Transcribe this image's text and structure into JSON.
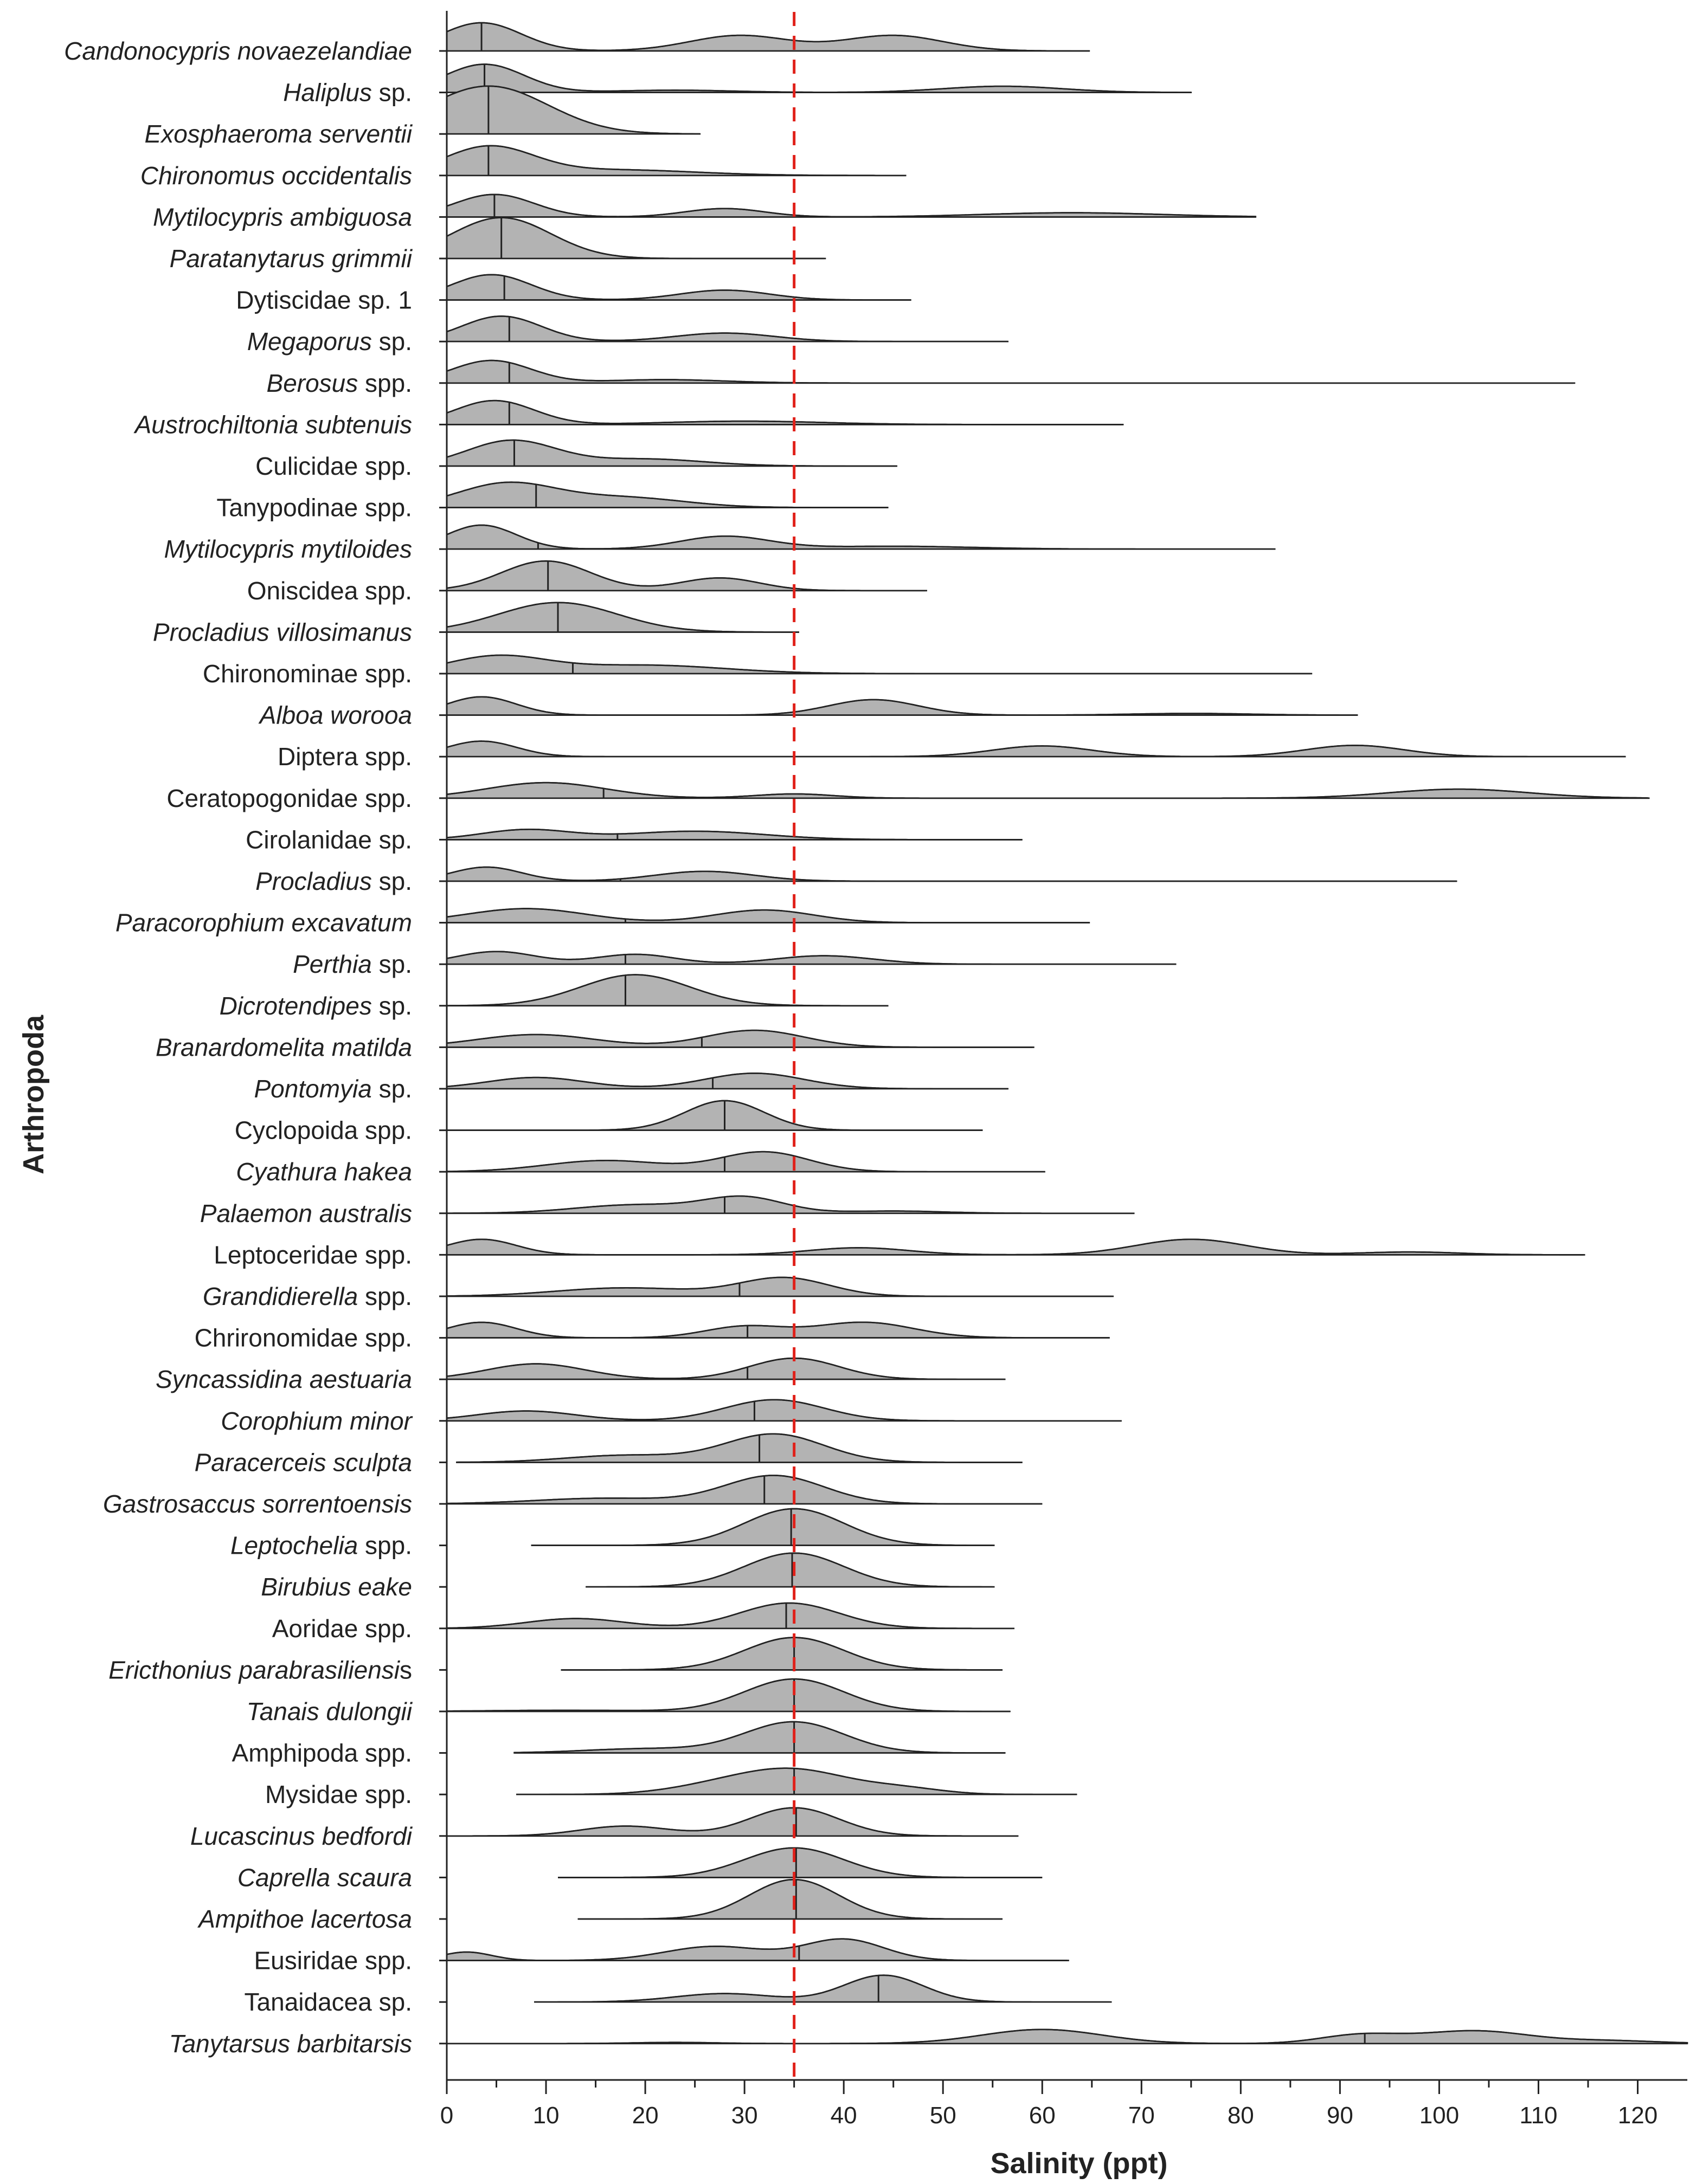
{
  "chart_data": {
    "type": "ridgeline",
    "ylabel": "Arthropoda",
    "xlabel": "Salinity (ppt)",
    "xlim": [
      0,
      125
    ],
    "xticks": [
      0,
      10,
      20,
      30,
      40,
      50,
      60,
      70,
      80,
      90,
      100,
      110,
      120
    ],
    "xtick_labels": [
      "0",
      "10",
      "20",
      "30",
      "40",
      "50",
      "60",
      "70",
      "80",
      "90",
      "100",
      "110",
      "120"
    ],
    "reference_line": {
      "x": 35,
      "color": "#e0211a",
      "style": "dashed"
    },
    "fill_color": "#b3b3b3",
    "species": [
      {
        "name": "Candonocypris novaezelandiae",
        "italic": [
          0,
          28
        ],
        "median": 3.5,
        "min": 0,
        "max": 64.8,
        "peaks": [
          [
            3.5,
            1.0,
            4
          ],
          [
            29.5,
            0.55,
            5
          ],
          [
            45,
            0.55,
            5
          ]
        ]
      },
      {
        "name": "Haliplus sp.",
        "italic": [
          0,
          8
        ],
        "median": 3.8,
        "min": 0,
        "max": 75,
        "peaks": [
          [
            3.8,
            1.0,
            4
          ],
          [
            23,
            0.08,
            6
          ],
          [
            56,
            0.22,
            6
          ]
        ]
      },
      {
        "name": "Exosphaeroma serventii",
        "italic": [
          0,
          22
        ],
        "median": 4.2,
        "min": 0,
        "max": 25.5,
        "peaks": [
          [
            4.2,
            1.7,
            6
          ]
        ]
      },
      {
        "name": "Chironomus occidentalis",
        "italic": [
          0,
          23
        ],
        "median": 4.2,
        "min": 0,
        "max": 46.3,
        "peaks": [
          [
            4.2,
            1.0,
            4.5
          ],
          [
            17,
            0.2,
            8
          ]
        ]
      },
      {
        "name": "Mytilocypris ambiguosa",
        "italic": [
          0,
          22
        ],
        "median": 4.8,
        "min": 0,
        "max": 81.5,
        "peaks": [
          [
            4.8,
            0.8,
            4
          ],
          [
            28,
            0.3,
            4
          ],
          [
            63,
            0.15,
            9
          ]
        ]
      },
      {
        "name": "Paratanytarus grimmii",
        "italic": [
          0,
          21
        ],
        "median": 5.5,
        "min": 0,
        "max": 38.2,
        "peaks": [
          [
            5.5,
            1.45,
            5
          ]
        ]
      },
      {
        "name": "Dytiscidae sp. 1",
        "italic": [
          0,
          0
        ],
        "median": 5.8,
        "min": 0,
        "max": 46.8,
        "peaks": [
          [
            4.5,
            0.9,
            4
          ],
          [
            28,
            0.35,
            4.5
          ]
        ]
      },
      {
        "name": "Megaporus sp.",
        "italic": [
          0,
          9
        ],
        "median": 6.3,
        "min": 0,
        "max": 56.6,
        "peaks": [
          [
            5.5,
            0.9,
            4
          ],
          [
            28,
            0.3,
            5
          ]
        ]
      },
      {
        "name": "Berosus spp.",
        "italic": [
          0,
          7
        ],
        "median": 6.3,
        "min": 0,
        "max": 113.7,
        "peaks": [
          [
            4.5,
            0.8,
            4
          ],
          [
            22,
            0.12,
            6
          ]
        ]
      },
      {
        "name": "Austrochiltonia subtenuis",
        "italic": [
          0,
          25
        ],
        "median": 6.3,
        "min": 0,
        "max": 68.2,
        "peaks": [
          [
            4.8,
            0.85,
            4
          ],
          [
            30,
            0.12,
            8
          ]
        ]
      },
      {
        "name": "Culicidae spp.",
        "italic": [
          0,
          0
        ],
        "median": 6.8,
        "min": 0,
        "max": 45.4,
        "peaks": [
          [
            6.5,
            0.9,
            4.5
          ],
          [
            20,
            0.25,
            6
          ]
        ]
      },
      {
        "name": "Tanypodinae spp.",
        "italic": [
          0,
          0
        ],
        "median": 9.0,
        "min": 0,
        "max": 44.5,
        "peaks": [
          [
            6,
            0.85,
            5
          ],
          [
            18,
            0.35,
            6
          ]
        ]
      },
      {
        "name": "Mytilocypris mytiloides",
        "italic": [
          0,
          23
        ],
        "median": 9.2,
        "min": 0,
        "max": 83.5,
        "peaks": [
          [
            3.5,
            0.85,
            3.5
          ],
          [
            28,
            0.45,
            4.5
          ],
          [
            45,
            0.1,
            8
          ]
        ]
      },
      {
        "name": "Oniscidea spp.",
        "italic": [
          0,
          0
        ],
        "median": 10.2,
        "min": 0,
        "max": 48.4,
        "peaks": [
          [
            10,
            1.05,
            4.5
          ],
          [
            27.5,
            0.45,
            4
          ]
        ]
      },
      {
        "name": "Procladius villosimanus",
        "italic": [
          0,
          23
        ],
        "median": 11.2,
        "min": 0,
        "max": 35.5,
        "peaks": [
          [
            11.2,
            1.05,
            6
          ]
        ]
      },
      {
        "name": "Chironominae spp.",
        "italic": [
          0,
          0
        ],
        "median": 12.7,
        "min": 0,
        "max": 87.2,
        "peaks": [
          [
            5,
            0.6,
            5
          ],
          [
            20,
            0.3,
            8
          ]
        ]
      },
      {
        "name": "Alboa worooa",
        "italic": [
          0,
          12
        ],
        "median": 13.0,
        "min": 0,
        "max": 91.8,
        "peaks": [
          [
            3.5,
            0.65,
            3.5
          ],
          [
            43,
            0.55,
            4.5
          ],
          [
            75,
            0.06,
            6
          ]
        ]
      },
      {
        "name": "Diptera spp.",
        "italic": [
          0,
          0
        ],
        "median": 15.8,
        "min": 0,
        "max": 118.8,
        "peaks": [
          [
            3.5,
            0.55,
            3.5
          ],
          [
            60,
            0.38,
            5
          ],
          [
            91.5,
            0.4,
            5
          ]
        ]
      },
      {
        "name": "Ceratopogonidae spp.",
        "italic": [
          0,
          0
        ],
        "median": 15.8,
        "min": 0,
        "max": 121.2,
        "peaks": [
          [
            10,
            0.55,
            6
          ],
          [
            35,
            0.15,
            4
          ],
          [
            102,
            0.32,
            7
          ]
        ]
      },
      {
        "name": "Cirolanidae sp.",
        "italic": [
          0,
          0
        ],
        "median": 17.2,
        "min": 0,
        "max": 58.0,
        "peaks": [
          [
            8,
            0.35,
            4.5
          ],
          [
            25,
            0.3,
            7
          ]
        ]
      },
      {
        "name": "Procladius sp.",
        "italic": [
          0,
          10
        ],
        "median": 17.5,
        "min": 0,
        "max": 101.8,
        "peaks": [
          [
            4,
            0.5,
            3.5
          ],
          [
            26,
            0.35,
            5
          ]
        ]
      },
      {
        "name": "Paracorophium excavatum",
        "italic": [
          0,
          23
        ],
        "median": 18.0,
        "min": 0,
        "max": 64.8,
        "peaks": [
          [
            8,
            0.5,
            6
          ],
          [
            32,
            0.45,
            5
          ]
        ]
      },
      {
        "name": "Perthia sp.",
        "italic": [
          0,
          7
        ],
        "median": 18.0,
        "min": 0,
        "max": 73.5,
        "peaks": [
          [
            5,
            0.45,
            4
          ],
          [
            19,
            0.35,
            4
          ],
          [
            38,
            0.3,
            5
          ]
        ]
      },
      {
        "name": "Dicrotendipes sp.",
        "italic": [
          0,
          13
        ],
        "median": 18.0,
        "min": 0,
        "max": 44.5,
        "peaks": [
          [
            19,
            1.1,
            5.5
          ]
        ]
      },
      {
        "name": "Branardomelita matilda",
        "italic": [
          0,
          22
        ],
        "median": 25.7,
        "min": 0,
        "max": 59.2,
        "peaks": [
          [
            9,
            0.45,
            6
          ],
          [
            31,
            0.6,
            5
          ]
        ]
      },
      {
        "name": "Pontomyia sp.",
        "italic": [
          0,
          9
        ],
        "median": 26.8,
        "min": 0,
        "max": 56.6,
        "peaks": [
          [
            9,
            0.4,
            5
          ],
          [
            31,
            0.55,
            5
          ]
        ]
      },
      {
        "name": "Cyclopoida spp.",
        "italic": [
          0,
          0
        ],
        "median": 28.0,
        "min": 0,
        "max": 54.0,
        "peaks": [
          [
            28,
            1.05,
            4
          ]
        ]
      },
      {
        "name": "Cyathura hakea",
        "italic": [
          0,
          14
        ],
        "median": 28.0,
        "min": 0,
        "max": 60.3,
        "peaks": [
          [
            16,
            0.4,
            6
          ],
          [
            32,
            0.7,
            4.5
          ]
        ]
      },
      {
        "name": "Palaemon australis",
        "italic": [
          0,
          18
        ],
        "median": 28.0,
        "min": 0,
        "max": 69.3,
        "peaks": [
          [
            19,
            0.3,
            6
          ],
          [
            30,
            0.55,
            4
          ],
          [
            45,
            0.08,
            5
          ]
        ]
      },
      {
        "name": "Leptoceridae spp.",
        "italic": [
          0,
          0
        ],
        "median": 35.0,
        "min": 0,
        "max": 114.7,
        "peaks": [
          [
            3.5,
            0.55,
            3.5
          ],
          [
            41.5,
            0.25,
            5
          ],
          [
            75,
            0.55,
            5.5
          ],
          [
            97,
            0.1,
            5
          ]
        ]
      },
      {
        "name": "Grandidierella spp.",
        "italic": [
          0,
          14
        ],
        "median": 29.5,
        "min": 0,
        "max": 67.2,
        "peaks": [
          [
            18,
            0.3,
            7
          ],
          [
            34,
            0.65,
            4.5
          ]
        ]
      },
      {
        "name": "Chrironomidae spp.",
        "italic": [
          0,
          0
        ],
        "median": 30.3,
        "min": 0,
        "max": 66.8,
        "peaks": [
          [
            3.5,
            0.55,
            3.5
          ],
          [
            30,
            0.4,
            4
          ],
          [
            42,
            0.55,
            5
          ]
        ]
      },
      {
        "name": "Syncassidina aestuaria",
        "italic": [
          0,
          22
        ],
        "median": 30.3,
        "min": 0,
        "max": 56.3,
        "peaks": [
          [
            9,
            0.55,
            5
          ],
          [
            35,
            0.75,
            4.5
          ]
        ]
      },
      {
        "name": "Corophium minor",
        "italic": [
          0,
          15
        ],
        "median": 31.0,
        "min": 0,
        "max": 68.0,
        "peaks": [
          [
            8,
            0.35,
            5
          ],
          [
            33,
            0.75,
            5
          ]
        ]
      },
      {
        "name": "Paracerceis sculpta",
        "italic": [
          0,
          19
        ],
        "median": 31.5,
        "min": 1.0,
        "max": 58.0,
        "peaks": [
          [
            18,
            0.25,
            6
          ],
          [
            33,
            1.0,
            5
          ]
        ]
      },
      {
        "name": "Gastrosaccus sorrentoensis",
        "italic": [
          0,
          26
        ],
        "median": 32.0,
        "min": 0,
        "max": 60.0,
        "peaks": [
          [
            16,
            0.2,
            7
          ],
          [
            33,
            1.0,
            5
          ]
        ]
      },
      {
        "name": "Leptochelia spp.",
        "italic": [
          0,
          11
        ],
        "median": 34.7,
        "min": 8.5,
        "max": 55.2,
        "peaks": [
          [
            35,
            1.3,
            5
          ]
        ]
      },
      {
        "name": "Birubius eake",
        "italic": [
          0,
          13
        ],
        "median": 34.8,
        "min": 14.0,
        "max": 55.2,
        "peaks": [
          [
            35,
            1.2,
            5
          ]
        ]
      },
      {
        "name": "Aoridae spp.",
        "italic": [
          0,
          0
        ],
        "median": 34.2,
        "min": 0,
        "max": 57.2,
        "peaks": [
          [
            13,
            0.35,
            5
          ],
          [
            34.5,
            0.9,
            5
          ]
        ]
      },
      {
        "name": "Ericthonius parabrasiliensis",
        "italic": [
          0,
          27
        ],
        "median": 35.0,
        "min": 11.5,
        "max": 56.0,
        "peaks": [
          [
            35,
            1.15,
            5
          ]
        ]
      },
      {
        "name": "Tanais dulongii",
        "italic": [
          0,
          15
        ],
        "median": 35.0,
        "min": 0,
        "max": 56.8,
        "peaks": [
          [
            35,
            1.15,
            5
          ],
          [
            12,
            0.04,
            8
          ]
        ]
      },
      {
        "name": "Amphipoda spp.",
        "italic": [
          0,
          0
        ],
        "median": 35.0,
        "min": 6.8,
        "max": 56.3,
        "peaks": [
          [
            35,
            1.1,
            5
          ],
          [
            20,
            0.15,
            6
          ]
        ]
      },
      {
        "name": "Mysidae spp.",
        "italic": [
          0,
          0
        ],
        "median": 35.0,
        "min": 7.0,
        "max": 63.5,
        "peaks": [
          [
            35,
            0.85,
            5.5
          ],
          [
            27,
            0.25,
            5
          ],
          [
            46,
            0.2,
            4
          ]
        ]
      },
      {
        "name": "Lucascinus bedfordi",
        "italic": [
          0,
          19
        ],
        "median": 35.2,
        "min": 0,
        "max": 57.6,
        "peaks": [
          [
            18,
            0.35,
            4.5
          ],
          [
            35,
            1.0,
            4.5
          ]
        ]
      },
      {
        "name": "Caprella scaura",
        "italic": [
          0,
          15
        ],
        "median": 35.2,
        "min": 11.2,
        "max": 60.0,
        "peaks": [
          [
            35,
            1.05,
            5
          ]
        ]
      },
      {
        "name": "Ampithoe lacertosa",
        "italic": [
          0,
          18
        ],
        "median": 35.2,
        "min": 13.2,
        "max": 56.0,
        "peaks": [
          [
            35,
            1.4,
            4.5
          ]
        ]
      },
      {
        "name": "Eusiridae spp.",
        "italic": [
          0,
          0
        ],
        "median": 35.5,
        "min": 0,
        "max": 62.7,
        "peaks": [
          [
            2,
            0.3,
            2.5
          ],
          [
            27,
            0.5,
            5
          ],
          [
            40,
            0.75,
            4
          ]
        ]
      },
      {
        "name": "Tanaidacea sp.",
        "italic": [
          0,
          0
        ],
        "median": 43.5,
        "min": 8.8,
        "max": 67.0,
        "peaks": [
          [
            28,
            0.3,
            5
          ],
          [
            44,
            0.95,
            4
          ]
        ]
      },
      {
        "name": "Tanytarsus barbitarsis",
        "italic": [
          0,
          22
        ],
        "median": 92.5,
        "min": 0,
        "max": 125,
        "peaks": [
          [
            23,
            0.04,
            4
          ],
          [
            60,
            0.5,
            6
          ],
          [
            92,
            0.3,
            4
          ],
          [
            103.5,
            0.45,
            5.5
          ],
          [
            117,
            0.1,
            5
          ]
        ]
      }
    ]
  }
}
